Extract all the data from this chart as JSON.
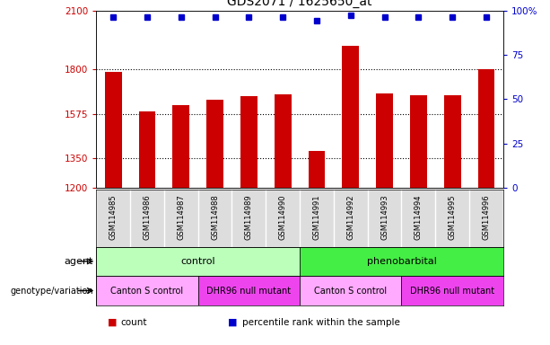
{
  "title": "GDS2071 / 1625650_at",
  "samples": [
    "GSM114985",
    "GSM114986",
    "GSM114987",
    "GSM114988",
    "GSM114989",
    "GSM114990",
    "GSM114991",
    "GSM114992",
    "GSM114993",
    "GSM114994",
    "GSM114995",
    "GSM114996"
  ],
  "counts": [
    1790,
    1590,
    1620,
    1645,
    1665,
    1675,
    1390,
    1920,
    1680,
    1670,
    1670,
    1800
  ],
  "percentile_ranks": [
    96,
    96,
    96,
    96,
    96,
    96,
    94,
    97,
    96,
    96,
    96,
    96
  ],
  "bar_color": "#cc0000",
  "dot_color": "#0000cc",
  "ylim_left": [
    1200,
    2100
  ],
  "yticks_left": [
    1200,
    1350,
    1575,
    1800,
    2100
  ],
  "ylim_right": [
    0,
    100
  ],
  "yticks_right": [
    0,
    25,
    50,
    75,
    100
  ],
  "ylabel_left_color": "#cc0000",
  "ylabel_right_color": "#0000cc",
  "ylabel_right_label": "100%",
  "grid_lines": [
    1350,
    1575,
    1800
  ],
  "agent_labels": [
    {
      "label": "control",
      "start": 0,
      "end": 6,
      "color": "#bbffbb"
    },
    {
      "label": "phenobarbital",
      "start": 6,
      "end": 12,
      "color": "#44ee44"
    }
  ],
  "genotype_labels": [
    {
      "label": "Canton S control",
      "start": 0,
      "end": 3,
      "color": "#ffaaff"
    },
    {
      "label": "DHR96 null mutant",
      "start": 3,
      "end": 6,
      "color": "#ee44ee"
    },
    {
      "label": "Canton S control",
      "start": 6,
      "end": 9,
      "color": "#ffaaff"
    },
    {
      "label": "DHR96 null mutant",
      "start": 9,
      "end": 12,
      "color": "#ee44ee"
    }
  ],
  "legend_items": [
    {
      "label": "count",
      "color": "#cc0000"
    },
    {
      "label": "percentile rank within the sample",
      "color": "#0000cc"
    }
  ],
  "title_fontsize": 10,
  "tick_fontsize": 7.5,
  "bar_width": 0.5,
  "background_color": "#ffffff",
  "plot_bg_color": "#ffffff",
  "sample_bg_color": "#dddddd",
  "left_label_color": "#000000",
  "arrow_color": "#555555"
}
